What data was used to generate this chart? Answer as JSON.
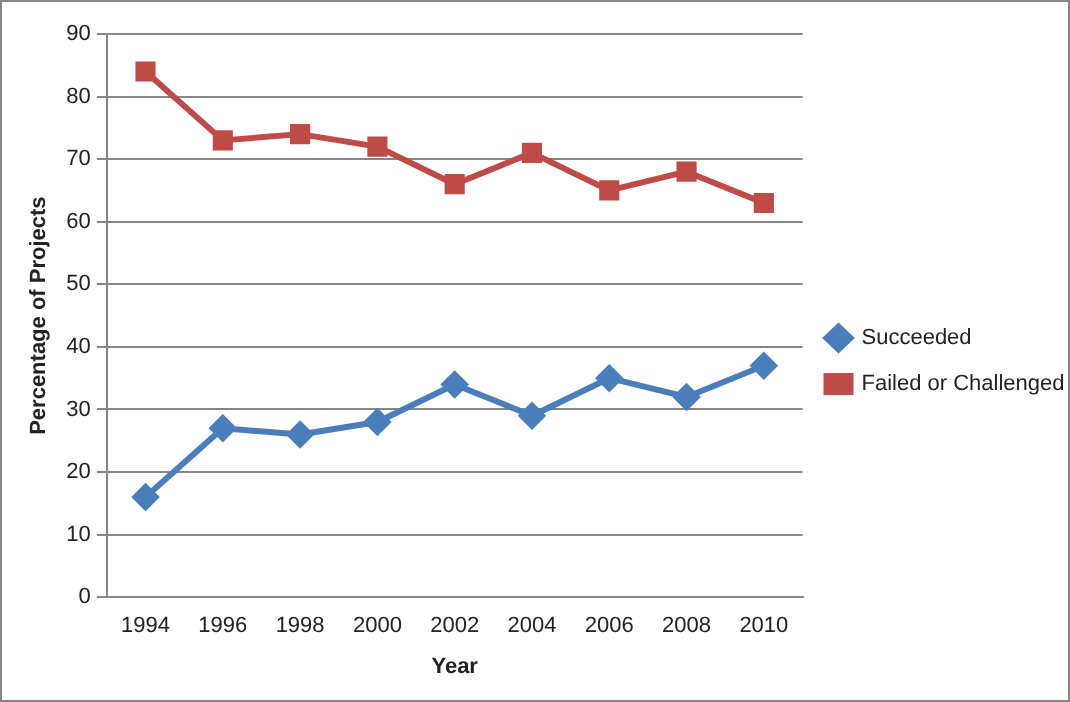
{
  "chart_data": {
    "type": "line",
    "xlabel": "Year",
    "ylabel": "Percentage of Projects",
    "categories": [
      "1994",
      "1996",
      "1998",
      "2000",
      "2002",
      "2004",
      "2006",
      "2008",
      "2010"
    ],
    "series": [
      {
        "name": "Succeeded",
        "color": "#4a7ebb",
        "marker": "diamond",
        "values": [
          16,
          27,
          26,
          28,
          34,
          29,
          35,
          32,
          37
        ]
      },
      {
        "name": "Failed or Challenged",
        "color": "#be4b48",
        "marker": "square",
        "values": [
          84,
          73,
          74,
          72,
          66,
          71,
          65,
          68,
          63
        ]
      }
    ],
    "ylim": [
      0,
      90
    ],
    "yticks": [
      0,
      10,
      20,
      30,
      40,
      50,
      60,
      70,
      80,
      90
    ],
    "grid": "y",
    "legend": "right",
    "line_style": "solid"
  }
}
